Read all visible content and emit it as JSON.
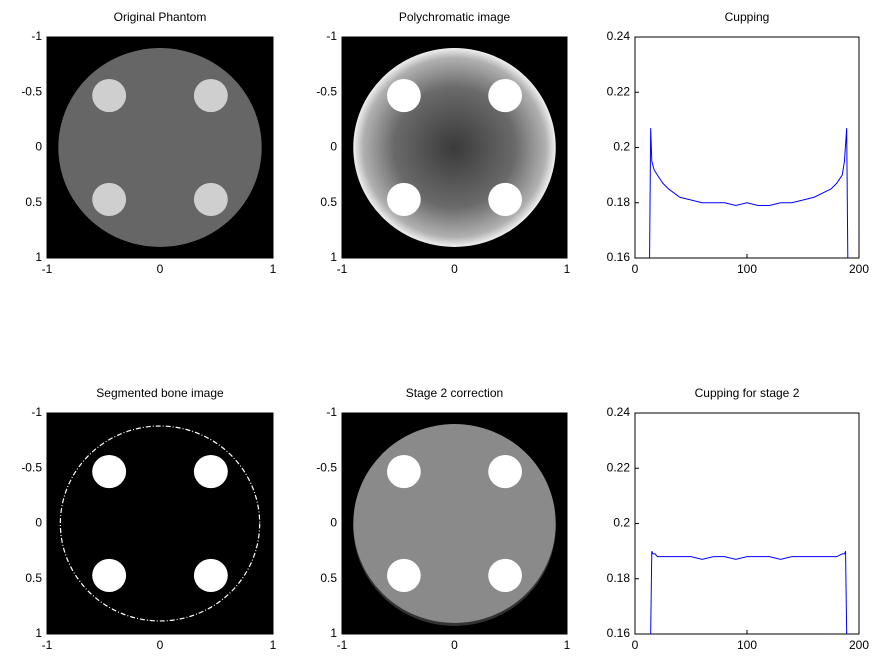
{
  "chart_data": [
    {
      "type": "image",
      "title": "Original Phantom",
      "xlim": [
        -1,
        1
      ],
      "ylim": [
        -1,
        1
      ],
      "xticks": [
        -1,
        0,
        1
      ],
      "yticks": [
        -1,
        -0.5,
        0,
        0.5,
        1
      ],
      "y_reversed": true
    },
    {
      "type": "image",
      "title": "Polychromatic image",
      "xlim": [
        -1,
        1
      ],
      "ylim": [
        -1,
        1
      ],
      "xticks": [
        -1,
        0,
        1
      ],
      "yticks": [
        -1,
        -0.5,
        0,
        0.5,
        1
      ],
      "y_reversed": true
    },
    {
      "type": "line",
      "title": "Cupping",
      "xlim": [
        0,
        200
      ],
      "ylim": [
        0.16,
        0.24
      ],
      "xticks": [
        0,
        100,
        200
      ],
      "yticks": [
        0.16,
        0.18,
        0.2,
        0.22,
        0.24
      ],
      "color": "#0000ff",
      "x": [
        13,
        14,
        15,
        17,
        20,
        25,
        30,
        40,
        50,
        60,
        70,
        80,
        90,
        100,
        110,
        120,
        130,
        140,
        150,
        160,
        170,
        175,
        180,
        185,
        187,
        189,
        190
      ],
      "values": [
        0.16,
        0.207,
        0.195,
        0.192,
        0.19,
        0.187,
        0.185,
        0.182,
        0.181,
        0.18,
        0.18,
        0.18,
        0.179,
        0.18,
        0.179,
        0.179,
        0.18,
        0.18,
        0.181,
        0.182,
        0.184,
        0.185,
        0.187,
        0.19,
        0.195,
        0.207,
        0.16
      ]
    },
    {
      "type": "image",
      "title": "Segmented bone image",
      "xlim": [
        -1,
        1
      ],
      "ylim": [
        -1,
        1
      ],
      "xticks": [
        -1,
        0,
        1
      ],
      "yticks": [
        -1,
        -0.5,
        0,
        0.5,
        1
      ],
      "y_reversed": true
    },
    {
      "type": "image",
      "title": "Stage 2 correction",
      "xlim": [
        -1,
        1
      ],
      "ylim": [
        -1,
        1
      ],
      "xticks": [
        -1,
        0,
        1
      ],
      "yticks": [
        -1,
        -0.5,
        0,
        0.5,
        1
      ],
      "y_reversed": true
    },
    {
      "type": "line",
      "title": "Cupping for stage 2",
      "xlim": [
        0,
        200
      ],
      "ylim": [
        0.16,
        0.24
      ],
      "xticks": [
        0,
        100,
        200
      ],
      "yticks": [
        0.16,
        0.18,
        0.2,
        0.22,
        0.24
      ],
      "color": "#0000ff",
      "x": [
        14,
        15,
        16,
        18,
        20,
        30,
        40,
        50,
        60,
        70,
        80,
        90,
        100,
        110,
        120,
        130,
        140,
        150,
        160,
        170,
        180,
        185,
        187,
        188,
        189
      ],
      "values": [
        0.16,
        0.19,
        0.189,
        0.189,
        0.188,
        0.188,
        0.188,
        0.188,
        0.187,
        0.188,
        0.188,
        0.187,
        0.188,
        0.188,
        0.188,
        0.187,
        0.188,
        0.188,
        0.188,
        0.188,
        0.188,
        0.189,
        0.189,
        0.19,
        0.16
      ]
    }
  ]
}
